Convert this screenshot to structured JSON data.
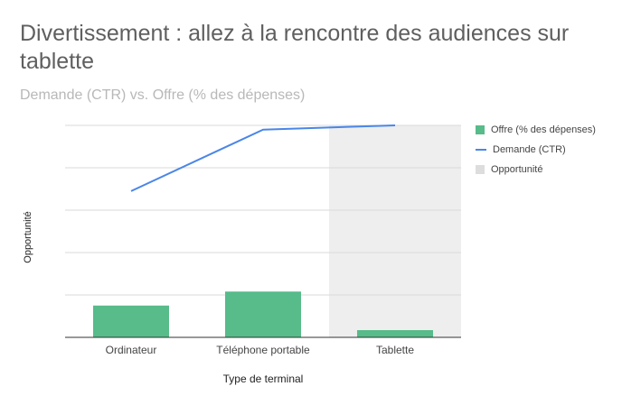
{
  "title": "Divertissement : allez à la rencontre des audiences sur tablette",
  "subtitle": "Demande (CTR) vs. Offre (% des dépenses)",
  "colors": {
    "offre": "#57bb8a",
    "demande": "#4a86e8",
    "opportunite": "#eeeeee"
  },
  "chart_data": {
    "type": "bar",
    "title": "Divertissement : allez à la rencontre des audiences sur tablette",
    "subtitle": "Demande (CTR) vs. Offre (% des dépenses)",
    "xlabel": "Type de terminal",
    "ylabel": "Opportunité",
    "categories": [
      "Ordinateur",
      "Téléphone portable",
      "Tablette"
    ],
    "ylim": [
      0,
      5
    ],
    "grid": true,
    "legend_position": "right",
    "series": [
      {
        "name": "Offre (% des dépenses)",
        "type": "bar",
        "values": [
          0.75,
          1.08,
          0.17
        ]
      },
      {
        "name": "Demande (CTR)",
        "type": "line",
        "values": [
          3.45,
          4.9,
          5.0
        ]
      },
      {
        "name": "Opportunité",
        "type": "area",
        "highlighted_categories": [
          "Tablette"
        ]
      }
    ]
  }
}
